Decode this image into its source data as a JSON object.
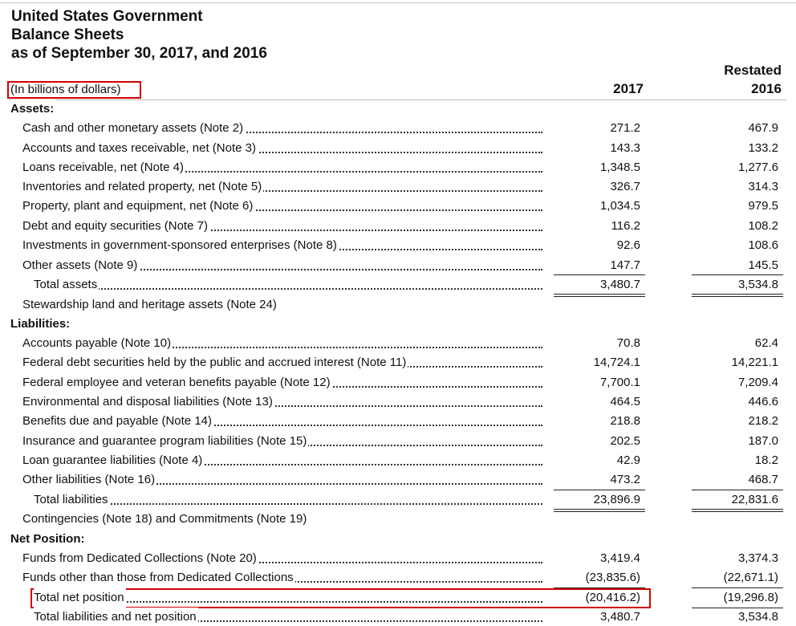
{
  "title": {
    "line1": "United States Government",
    "line2": "Balance Sheets",
    "line3": "as of September 30, 2017, and 2016"
  },
  "units_label": "(In billions of dollars)",
  "columns": {
    "col1_year": "2017",
    "col2_note": "Restated",
    "col2_year": "2016"
  },
  "sections": {
    "assets": "Assets:",
    "liabilities": "Liabilities:",
    "net_position": "Net Position:"
  },
  "rows": {
    "cash": {
      "label": "Cash and other monetary assets (Note 2)",
      "v2017": "271.2",
      "v2016": "467.9"
    },
    "accounts_taxes": {
      "label": "Accounts and taxes receivable, net (Note 3)",
      "v2017": "143.3",
      "v2016": "133.2"
    },
    "loans": {
      "label": "Loans receivable, net (Note 4)",
      "v2017": "1,348.5",
      "v2016": "1,277.6"
    },
    "inventories": {
      "label": "Inventories and related property, net (Note 5)",
      "v2017": "326.7",
      "v2016": "314.3"
    },
    "ppe": {
      "label": "Property, plant and equipment, net (Note 6)",
      "v2017": "1,034.5",
      "v2016": "979.5"
    },
    "debt_equity": {
      "label": "Debt and equity securities (Note 7)",
      "v2017": "116.2",
      "v2016": "108.2"
    },
    "gse": {
      "label": "Investments in government-sponsored enterprises (Note 8)",
      "v2017": "92.6",
      "v2016": "108.6"
    },
    "other_assets": {
      "label": "Other assets (Note 9)",
      "v2017": "147.7",
      "v2016": "145.5"
    },
    "total_assets": {
      "label": "Total assets",
      "v2017": "3,480.7",
      "v2016": "3,534.8"
    },
    "stewardship": {
      "label": "Stewardship land and heritage assets (Note 24)"
    },
    "accounts_payable": {
      "label": "Accounts payable (Note 10)",
      "v2017": "70.8",
      "v2016": "62.4"
    },
    "federal_debt": {
      "label": "Federal debt securities held by the public and accrued interest (Note 11)",
      "v2017": "14,724.1",
      "v2016": "14,221.1"
    },
    "employee_benefits": {
      "label": "Federal employee and veteran benefits payable (Note 12)",
      "v2017": "7,700.1",
      "v2016": "7,209.4"
    },
    "environmental": {
      "label": "Environmental and disposal liabilities (Note 13)",
      "v2017": "464.5",
      "v2016": "446.6"
    },
    "benefits_due": {
      "label": "Benefits due and payable (Note 14)",
      "v2017": "218.8",
      "v2016": "218.2"
    },
    "insurance": {
      "label": "Insurance and guarantee program liabilities (Note 15)",
      "v2017": "202.5",
      "v2016": "187.0"
    },
    "loan_guarantee": {
      "label": "Loan guarantee liabilities (Note 4)",
      "v2017": "42.9",
      "v2016": "18.2"
    },
    "other_liabilities": {
      "label": "Other liabilities (Note 16)",
      "v2017": "473.2",
      "v2016": "468.7"
    },
    "total_liabilities": {
      "label": "Total liabilities",
      "v2017": "23,896.9",
      "v2016": "22,831.6"
    },
    "contingencies": {
      "label": "Contingencies (Note 18) and Commitments (Note 19)"
    },
    "dedicated": {
      "label": "Funds from Dedicated Collections (Note 20)",
      "v2017": "3,419.4",
      "v2016": "3,374.3"
    },
    "other_than_dedicated": {
      "label": "Funds other than those from Dedicated Collections",
      "v2017": "(23,835.6)",
      "v2016": "(22,671.1)"
    },
    "total_net_position": {
      "label": "Total net position",
      "v2017": "(20,416.2)",
      "v2016": "(19,296.8)"
    },
    "total_liab_net": {
      "label": "Total liabilities and net position",
      "v2017": "3,480.7",
      "v2016": "3,534.8"
    }
  },
  "highlight_color": "#d40000"
}
